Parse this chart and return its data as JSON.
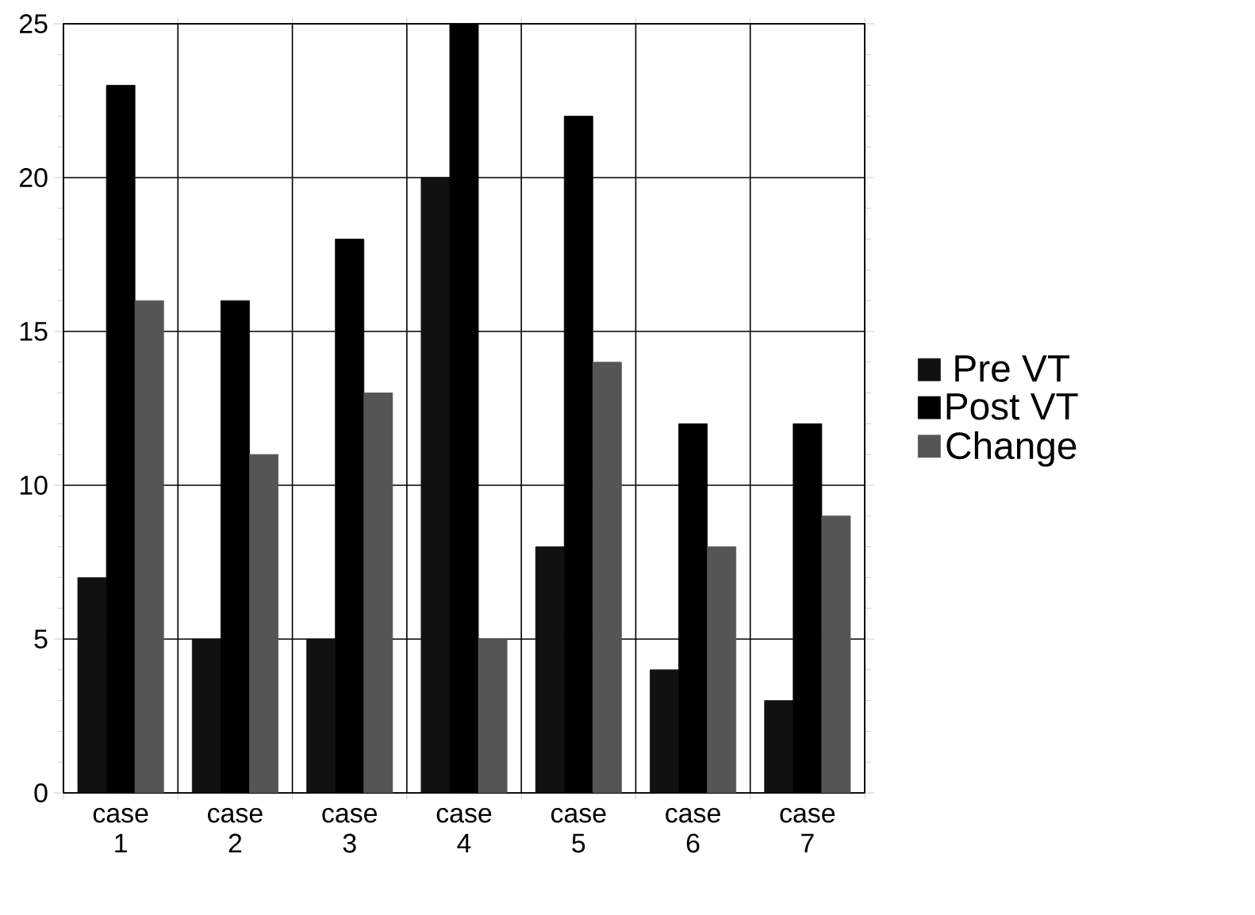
{
  "chart_data": {
    "type": "bar",
    "categories": [
      "case 1",
      "case 2",
      "case 3",
      "case 4",
      "case 5",
      "case 6",
      "case 7"
    ],
    "series": [
      {
        "name": "Pre VT",
        "color": "#111111",
        "values": [
          7,
          5,
          5,
          20,
          8,
          4,
          3
        ]
      },
      {
        "name": "Post VT",
        "color": "#000000",
        "values": [
          23,
          16,
          18,
          25,
          22,
          12,
          12
        ]
      },
      {
        "name": "Change",
        "color": "#555555",
        "values": [
          16,
          11,
          13,
          5,
          14,
          8,
          9
        ]
      }
    ],
    "ylim": [
      0,
      25
    ],
    "yticks": [
      0,
      5,
      10,
      15,
      20,
      25
    ],
    "grid": true,
    "legend": "right"
  }
}
